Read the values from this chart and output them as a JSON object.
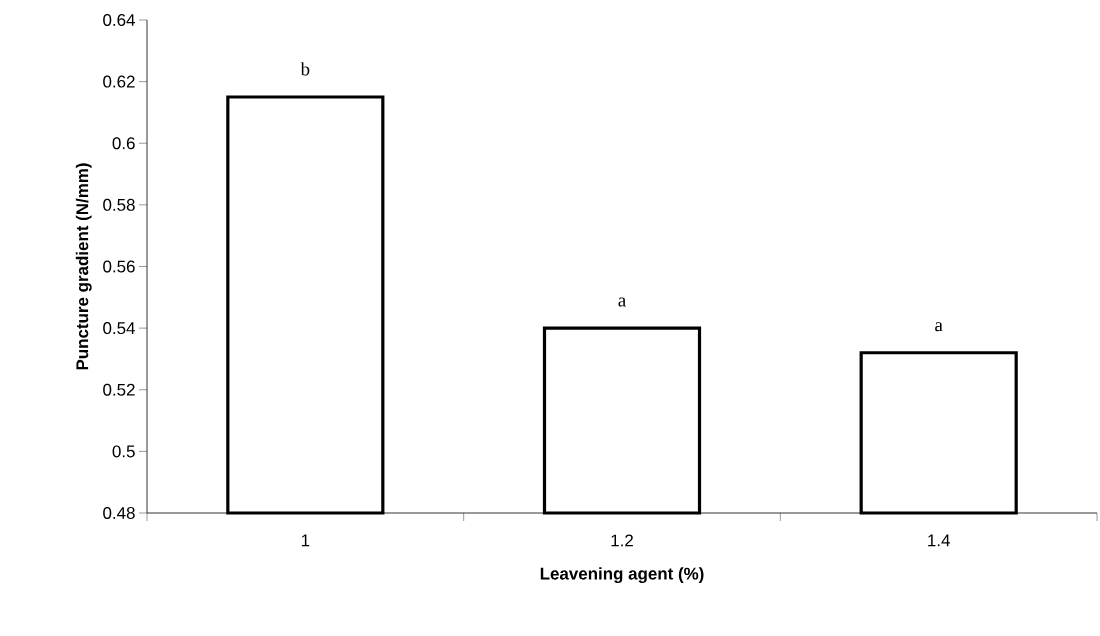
{
  "chart_data": {
    "type": "bar",
    "xlabel": "Leavening agent (%)",
    "ylabel": "Puncture gradient (N/mm)",
    "categories": [
      "1",
      "1.2",
      "1.4"
    ],
    "values": [
      0.615,
      0.54,
      0.532
    ],
    "color": "#ffffff",
    "ylim": [
      0.48,
      0.64
    ],
    "yticks": [
      0.48,
      0.5,
      0.52,
      0.54,
      0.56,
      0.58,
      0.6,
      0.62,
      0.64
    ],
    "annotations": [
      {
        "text": "b",
        "x": "1",
        "y": 0.615
      },
      {
        "text": "a",
        "x": "1.2",
        "y": 0.54
      },
      {
        "text": "a",
        "x": "1.4",
        "y": 0.532
      }
    ],
    "grid": false
  }
}
